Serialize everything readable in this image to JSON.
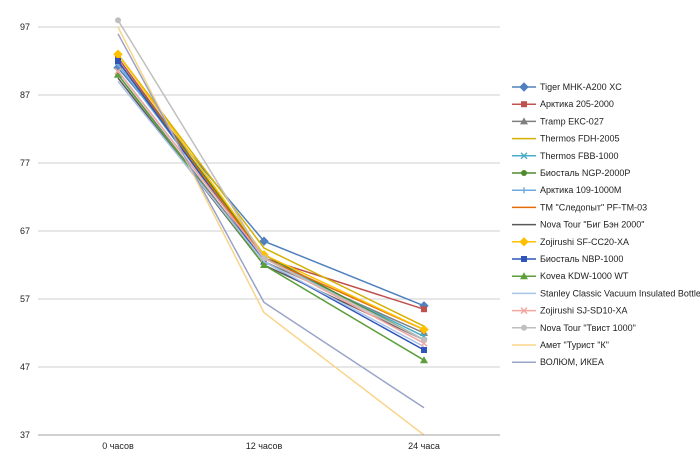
{
  "chart_data": {
    "type": "line",
    "title": "",
    "xlabel": "",
    "ylabel": "",
    "categories": [
      "0 часов",
      "12 часов",
      "24 часа"
    ],
    "ylim": [
      37,
      97
    ],
    "yticks": [
      37,
      47,
      57,
      67,
      77,
      87,
      97
    ],
    "grid": true,
    "legend_position": "right",
    "series": [
      {
        "name": "Tiger MHK-A200 XC",
        "color": "#4F81BD",
        "marker": "diamond",
        "values": [
          91,
          65.5,
          56
        ]
      },
      {
        "name": "Арктика 205-2000",
        "color": "#C0504D",
        "marker": "square",
        "values": [
          92.5,
          63,
          55.5
        ]
      },
      {
        "name": "Tramp ЕКС-027",
        "color": "#7F7F7F",
        "marker": "triangle",
        "values": [
          90,
          62.5,
          52
        ]
      },
      {
        "name": "Thermos FDH-2005",
        "color": "#D4B000",
        "marker": "line",
        "values": [
          93,
          64.5,
          53
        ]
      },
      {
        "name": "Thermos FBB-1000",
        "color": "#4BACC6",
        "marker": "x",
        "values": [
          90.5,
          63,
          51.5
        ]
      },
      {
        "name": "Биосталь NGP-2000P",
        "color": "#4E8A2E",
        "marker": "circle",
        "values": [
          92,
          63.5,
          51
        ]
      },
      {
        "name": "Арктика 109-1000М",
        "color": "#6FA8DC",
        "marker": "plus",
        "values": [
          91.5,
          63,
          51
        ]
      },
      {
        "name": "ТМ \"Следопыт\" PF-TM-03",
        "color": "#E46C0A",
        "marker": "line",
        "values": [
          92,
          63,
          52.5
        ]
      },
      {
        "name": "Nova Tour \"Биг Бэн 2000\"",
        "color": "#595959",
        "marker": "line",
        "values": [
          89.5,
          62,
          51
        ]
      },
      {
        "name": "Zojirushi SF-CC20-XA",
        "color": "#FFC000",
        "marker": "diamond",
        "values": [
          93,
          63.5,
          52.5
        ]
      },
      {
        "name": "Биосталь NBP-1000",
        "color": "#2F55B8",
        "marker": "square",
        "values": [
          92,
          62.5,
          49.5
        ]
      },
      {
        "name": "Kovea  KDW-1000 WT",
        "color": "#5B9E3A",
        "marker": "triangle",
        "values": [
          90,
          62,
          48
        ]
      },
      {
        "name": "Stanley Classic Vacuum Insulated Bottle",
        "color": "#A9C4E8",
        "marker": "line",
        "values": [
          89,
          62.5,
          50
        ]
      },
      {
        "name": "Zojirushi SJ-SD10-XA",
        "color": "#F4A6A0",
        "marker": "x",
        "values": [
          90.5,
          63,
          50.5
        ]
      },
      {
        "name": "Nova Tour \"Твист 1000\"",
        "color": "#BFBFBF",
        "marker": "circle",
        "values": [
          98,
          63,
          51
        ]
      },
      {
        "name": "Амет \"Турист \"К\"",
        "color": "#F9D58B",
        "marker": "line",
        "values": [
          97,
          55,
          37
        ]
      },
      {
        "name": "ВОЛЮМ, ИКЕА",
        "color": "#9AA3C8",
        "marker": "line",
        "values": [
          96,
          56.5,
          41
        ]
      }
    ]
  }
}
